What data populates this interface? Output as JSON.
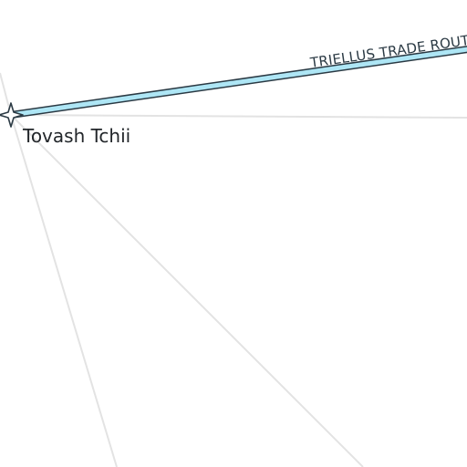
{
  "map": {
    "colors": {
      "background": "#ffffff",
      "hyperlane": "#e3e3e3",
      "trade_route_fill": "#aee6f5",
      "trade_route_stroke": "#2b3a44",
      "system_marker_fill": "#ffffff",
      "system_marker_stroke": "#2b3a44",
      "label": "#22262a"
    },
    "trade_route": {
      "label": "TRIELLUS TRADE ROUTE"
    },
    "system": {
      "name": "Tovash Tchii",
      "marker_icon": "four-point-star-icon"
    }
  }
}
